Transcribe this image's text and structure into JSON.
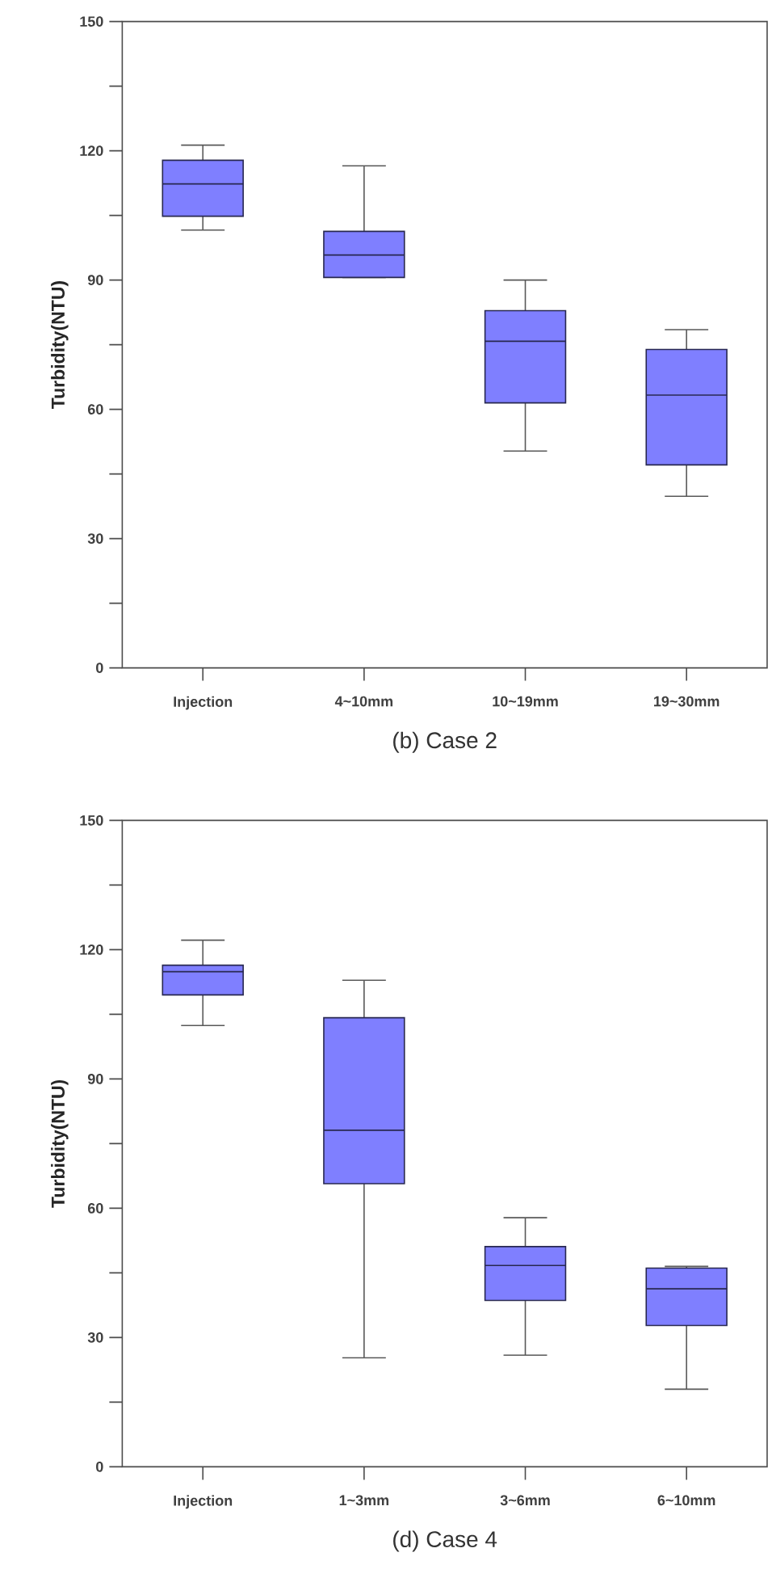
{
  "chart_data": [
    {
      "type": "box",
      "title": "(b) Case 2",
      "ylabel": "Turbidity(NTU)",
      "categories": [
        "Injection",
        "4~10mm",
        "10~19mm",
        "19~30mm"
      ],
      "color": "#7f7fff",
      "boxes": [
        {
          "low": 101.6,
          "q1": 104.8,
          "median": 112.3,
          "q3": 117.8,
          "high": 121.3
        },
        {
          "low": 90.6,
          "q1": 90.6,
          "median": 95.8,
          "q3": 101.3,
          "high": 116.5
        },
        {
          "low": 50.3,
          "q1": 61.5,
          "median": 75.8,
          "q3": 82.9,
          "high": 90
        },
        {
          "low": 39.8,
          "q1": 47.1,
          "median": 63.3,
          "q3": 73.9,
          "high": 78.5
        }
      ],
      "ylim": [
        0,
        150
      ],
      "yticks": [
        0,
        {
          "value": 15,
          "label": null
        },
        30,
        {
          "value": 45,
          "label": null
        },
        60,
        {
          "value": 75,
          "label": null
        },
        90,
        {
          "value": 105,
          "label": null
        },
        120,
        {
          "value": 135,
          "label": null
        },
        150
      ]
    },
    {
      "type": "box",
      "title": "(d) Case 4",
      "ylabel": "Turbidity(NTU)",
      "categories": [
        "Injection",
        "1~3mm",
        "3~6mm",
        "6~10mm"
      ],
      "color": "#7f7fff",
      "boxes": [
        {
          "low": 102.4,
          "q1": 109.5,
          "median": 114.9,
          "q3": 116.4,
          "high": 122.2
        },
        {
          "low": 25.3,
          "q1": 65.7,
          "median": 78.1,
          "q3": 104.2,
          "high": 112.9
        },
        {
          "low": 25.9,
          "q1": 38.6,
          "median": 46.7,
          "q3": 51.1,
          "high": 57.8
        },
        {
          "low": 18.0,
          "q1": 32.8,
          "median": 41.3,
          "q3": 46.1,
          "high": 46.5
        }
      ],
      "ylim": [
        0,
        150
      ],
      "yticks": [
        0,
        {
          "value": 15,
          "label": null
        },
        30,
        {
          "value": 45,
          "label": null
        },
        60,
        {
          "value": 75,
          "label": null
        },
        90,
        {
          "value": 105,
          "label": null
        },
        120,
        {
          "value": 135,
          "label": null
        },
        150
      ]
    }
  ]
}
